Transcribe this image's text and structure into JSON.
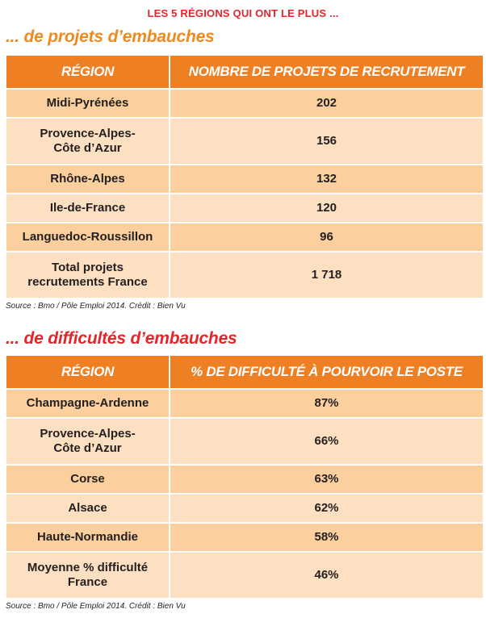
{
  "supertitle": "LES 5 RÉGIONS QUI ONT LE PLUS ...",
  "table1": {
    "title": "... de projets d’embauches",
    "headers": [
      "RÉGION",
      "NOMBRE DE PROJETS DE RECRUTEMENT"
    ],
    "rows": [
      {
        "region_l1": "Midi-Pyrénées",
        "region_l2": "",
        "value": "202"
      },
      {
        "region_l1": "Provence-Alpes-",
        "region_l2": "Côte d’Azur",
        "value": "156"
      },
      {
        "region_l1": "Rhône-Alpes",
        "region_l2": "",
        "value": "132"
      },
      {
        "region_l1": "Ile-de-France",
        "region_l2": "",
        "value": "120"
      },
      {
        "region_l1": "Languedoc-Roussillon",
        "region_l2": "",
        "value": "96"
      },
      {
        "region_l1": "Total projets",
        "region_l2": "recrutements France",
        "value": "1 718"
      }
    ],
    "source": "Source : Bmo / Pôle Emploi 2014. Crédit : Bien Vu"
  },
  "table2": {
    "title": "... de difficultés d’embauches",
    "headers": [
      "RÉGION",
      "% DE DIFFICULTÉ À POURVOIR LE POSTE"
    ],
    "rows": [
      {
        "region_l1": "Champagne-Ardenne",
        "region_l2": "",
        "value": "87%"
      },
      {
        "region_l1": "Provence-Alpes-",
        "region_l2": "Côte d’Azur",
        "value": "66%"
      },
      {
        "region_l1": "Corse",
        "region_l2": "",
        "value": "63%"
      },
      {
        "region_l1": "Alsace",
        "region_l2": "",
        "value": "62%"
      },
      {
        "region_l1": "Haute-Normandie",
        "region_l2": "",
        "value": "58%"
      },
      {
        "region_l1": "Moyenne % difficulté",
        "region_l2": "France",
        "value": "46%"
      }
    ],
    "source": "Source : Bmo / Pôle Emploi 2014. Crédit : Bien Vu"
  }
}
